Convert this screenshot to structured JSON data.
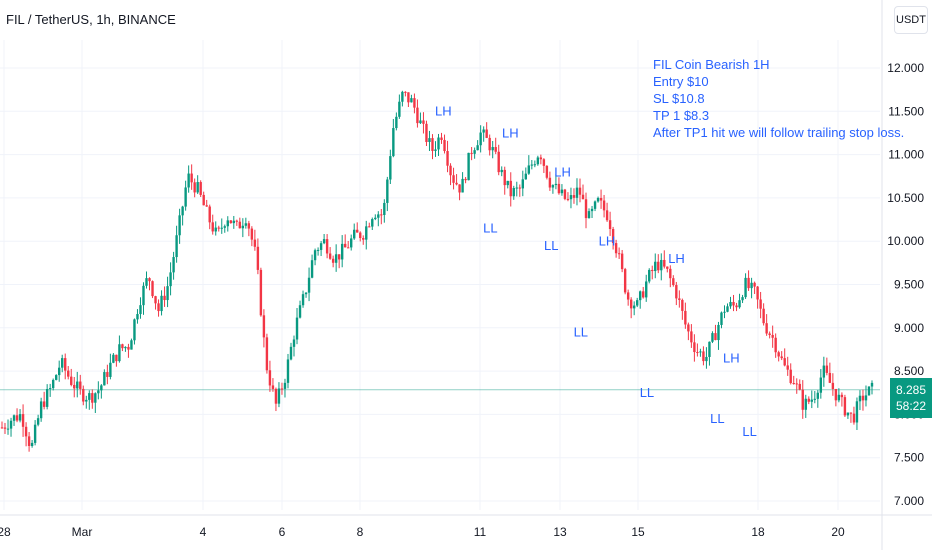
{
  "header": {
    "title": "FIL / TetherUS, 1h, BINANCE",
    "currency_button": "USDT"
  },
  "note": {
    "lines": [
      "FIL Coin Bearish 1H",
      "Entry $10",
      "SL $10.8",
      "TP 1 $8.3",
      "After TP1 hit we will follow trailing stop loss."
    ]
  },
  "current_price": {
    "value": "8.285",
    "countdown": "58:22",
    "level": 8.285,
    "color": "#089981"
  },
  "colors": {
    "up": "#089981",
    "down": "#f23645",
    "annotation": "#2962ff",
    "grid": "#f0f3fa"
  },
  "chart_data": {
    "type": "candlestick",
    "title": "FIL / TetherUS, 1h, BINANCE",
    "y_axis": {
      "position": "right",
      "range": [
        6.95,
        12.1
      ],
      "ticks": [
        7.0,
        7.5,
        8.0,
        8.5,
        9.0,
        9.5,
        10.0,
        10.5,
        11.0,
        11.5,
        12.0
      ],
      "tick_labels": [
        "7.000",
        "7.500",
        "8.000",
        "8.500",
        "9.000",
        "9.500",
        "10.000",
        "10.500",
        "11.000",
        "11.500",
        "12.000"
      ]
    },
    "x_axis": {
      "tick_labels": [
        "28",
        "Mar",
        "4",
        "6",
        "8",
        "11",
        "13",
        "15",
        "18",
        "20"
      ]
    },
    "grid": true,
    "approx_close_path": [
      7.85,
      7.95,
      8.0,
      7.6,
      8.1,
      8.3,
      8.6,
      8.4,
      8.25,
      8.2,
      8.3,
      8.55,
      8.75,
      8.8,
      9.3,
      9.6,
      9.2,
      9.5,
      10.1,
      10.75,
      10.6,
      10.3,
      10.05,
      10.3,
      10.15,
      10.3,
      9.8,
      8.6,
      8.1,
      8.45,
      9.0,
      9.4,
      9.9,
      10.0,
      9.8,
      9.9,
      10.05,
      10.1,
      10.35,
      10.3,
      11.3,
      11.7,
      11.6,
      11.3,
      11.05,
      11.25,
      10.75,
      10.6,
      11.05,
      11.25,
      11.1,
      10.8,
      10.55,
      10.6,
      10.85,
      11.05,
      10.7,
      10.55,
      10.45,
      10.6,
      10.25,
      10.45,
      10.3,
      9.85,
      9.35,
      9.25,
      9.55,
      9.75,
      9.65,
      9.4,
      9.0,
      8.75,
      8.65,
      8.95,
      9.25,
      9.25,
      9.5,
      9.4,
      9.05,
      8.85,
      8.55,
      8.4,
      8.1,
      8.2,
      8.5,
      8.3,
      8.1,
      7.95,
      8.2,
      8.285
    ],
    "annotations": [
      {
        "text": "LH",
        "price": 11.45,
        "pos": 0.505
      },
      {
        "text": "LH",
        "price": 11.2,
        "pos": 0.582
      },
      {
        "text": "LL",
        "price": 10.1,
        "pos": 0.559
      },
      {
        "text": "LH",
        "price": 10.75,
        "pos": 0.642
      },
      {
        "text": "LL",
        "price": 9.9,
        "pos": 0.629
      },
      {
        "text": "LH",
        "price": 9.95,
        "pos": 0.693
      },
      {
        "text": "LL",
        "price": 8.9,
        "pos": 0.663
      },
      {
        "text": "LH",
        "price": 9.75,
        "pos": 0.773
      },
      {
        "text": "LL",
        "price": 8.2,
        "pos": 0.739
      },
      {
        "text": "LH",
        "price": 8.6,
        "pos": 0.836
      },
      {
        "text": "LL",
        "price": 7.9,
        "pos": 0.82
      },
      {
        "text": "LL",
        "price": 7.75,
        "pos": 0.857
      }
    ]
  }
}
